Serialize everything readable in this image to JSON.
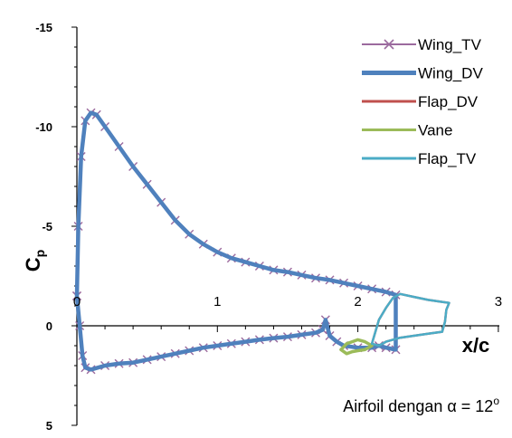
{
  "chart_data": {
    "type": "line",
    "title": "",
    "xlabel": "x/c",
    "ylabel": "C",
    "ylabel_sub": "p",
    "xlim": [
      0,
      3
    ],
    "ylim": [
      5,
      -15
    ],
    "y_inverted": true,
    "xticks": [
      {
        "value": 0,
        "label": "0"
      },
      {
        "value": 1,
        "label": "1"
      },
      {
        "value": 2,
        "label": "2"
      },
      {
        "value": 3,
        "label": "3"
      }
    ],
    "yticks": [
      {
        "value": -15,
        "label": "-15"
      },
      {
        "value": -10,
        "label": "-10"
      },
      {
        "value": -5,
        "label": "-5"
      },
      {
        "value": 0,
        "label": "0"
      },
      {
        "value": 5,
        "label": "5"
      }
    ],
    "grid": false,
    "legend": "top-right",
    "annotation": {
      "text_prefix": "Airfoil dengan ",
      "alpha": "α",
      "text_mid": " = 12",
      "degree": "o"
    },
    "series": [
      {
        "name": "Wing_TV",
        "color": "#9b6a9e",
        "marker": "x",
        "upper": [
          [
            0.0,
            -1.5
          ],
          [
            0.01,
            -5.0
          ],
          [
            0.03,
            -8.5
          ],
          [
            0.06,
            -10.3
          ],
          [
            0.1,
            -10.7
          ],
          [
            0.14,
            -10.6
          ],
          [
            0.2,
            -10.0
          ],
          [
            0.3,
            -9.0
          ],
          [
            0.4,
            -8.0
          ],
          [
            0.5,
            -7.1
          ],
          [
            0.6,
            -6.2
          ],
          [
            0.7,
            -5.3
          ],
          [
            0.8,
            -4.6
          ],
          [
            0.9,
            -4.1
          ],
          [
            1.0,
            -3.7
          ],
          [
            1.1,
            -3.4
          ],
          [
            1.2,
            -3.2
          ],
          [
            1.3,
            -3.0
          ],
          [
            1.4,
            -2.8
          ],
          [
            1.5,
            -2.7
          ],
          [
            1.6,
            -2.55
          ],
          [
            1.7,
            -2.4
          ],
          [
            1.8,
            -2.3
          ],
          [
            1.9,
            -2.15
          ],
          [
            2.0,
            -2.0
          ],
          [
            2.1,
            -1.85
          ],
          [
            2.2,
            -1.7
          ],
          [
            2.27,
            -1.55
          ]
        ],
        "lower": [
          [
            0.0,
            -1.5
          ],
          [
            0.02,
            0.0
          ],
          [
            0.04,
            1.5
          ],
          [
            0.06,
            2.1
          ],
          [
            0.1,
            2.2
          ],
          [
            0.2,
            2.0
          ],
          [
            0.3,
            1.9
          ],
          [
            0.4,
            1.85
          ],
          [
            0.5,
            1.7
          ],
          [
            0.6,
            1.55
          ],
          [
            0.7,
            1.4
          ],
          [
            0.8,
            1.25
          ],
          [
            0.9,
            1.1
          ],
          [
            1.0,
            1.0
          ],
          [
            1.1,
            0.9
          ],
          [
            1.2,
            0.8
          ],
          [
            1.3,
            0.7
          ],
          [
            1.4,
            0.62
          ],
          [
            1.5,
            0.55
          ],
          [
            1.6,
            0.45
          ],
          [
            1.7,
            0.35
          ],
          [
            1.75,
            0.2
          ],
          [
            1.77,
            -0.3
          ],
          [
            1.8,
            0.5
          ],
          [
            1.85,
            0.8
          ],
          [
            1.9,
            1.0
          ],
          [
            2.0,
            1.1
          ],
          [
            2.1,
            1.1
          ],
          [
            2.15,
            1.0
          ],
          [
            2.2,
            1.1
          ],
          [
            2.27,
            1.2
          ]
        ]
      },
      {
        "name": "Wing_DV",
        "color": "#4f81bd",
        "upper": [
          [
            0.0,
            -1.5
          ],
          [
            0.01,
            -5.0
          ],
          [
            0.03,
            -8.5
          ],
          [
            0.06,
            -10.3
          ],
          [
            0.1,
            -10.7
          ],
          [
            0.14,
            -10.6
          ],
          [
            0.2,
            -10.0
          ],
          [
            0.3,
            -9.0
          ],
          [
            0.4,
            -8.0
          ],
          [
            0.5,
            -7.1
          ],
          [
            0.6,
            -6.2
          ],
          [
            0.7,
            -5.3
          ],
          [
            0.8,
            -4.6
          ],
          [
            0.9,
            -4.1
          ],
          [
            1.0,
            -3.7
          ],
          [
            1.1,
            -3.4
          ],
          [
            1.2,
            -3.2
          ],
          [
            1.3,
            -3.0
          ],
          [
            1.4,
            -2.8
          ],
          [
            1.5,
            -2.7
          ],
          [
            1.6,
            -2.55
          ],
          [
            1.7,
            -2.4
          ],
          [
            1.8,
            -2.3
          ],
          [
            1.9,
            -2.15
          ],
          [
            2.0,
            -2.0
          ],
          [
            2.1,
            -1.85
          ],
          [
            2.2,
            -1.7
          ],
          [
            2.27,
            -1.55
          ]
        ],
        "lower": [
          [
            0.0,
            -1.5
          ],
          [
            0.02,
            0.0
          ],
          [
            0.04,
            1.5
          ],
          [
            0.06,
            2.1
          ],
          [
            0.1,
            2.2
          ],
          [
            0.2,
            2.0
          ],
          [
            0.3,
            1.9
          ],
          [
            0.4,
            1.85
          ],
          [
            0.5,
            1.7
          ],
          [
            0.6,
            1.55
          ],
          [
            0.7,
            1.4
          ],
          [
            0.8,
            1.25
          ],
          [
            0.9,
            1.1
          ],
          [
            1.0,
            1.0
          ],
          [
            1.1,
            0.9
          ],
          [
            1.2,
            0.8
          ],
          [
            1.3,
            0.7
          ],
          [
            1.4,
            0.62
          ],
          [
            1.5,
            0.55
          ],
          [
            1.6,
            0.45
          ],
          [
            1.7,
            0.35
          ],
          [
            1.75,
            0.2
          ],
          [
            1.77,
            -0.3
          ],
          [
            1.8,
            0.5
          ],
          [
            1.85,
            0.8
          ],
          [
            1.9,
            1.0
          ],
          [
            2.0,
            1.1
          ],
          [
            2.1,
            1.1
          ],
          [
            2.15,
            1.0
          ],
          [
            2.2,
            1.1
          ],
          [
            2.27,
            1.2
          ]
        ]
      },
      {
        "name": "Flap_DV",
        "color": "#c0504d",
        "upper": [
          [
            2.1,
            0.9
          ],
          [
            2.15,
            -0.3
          ],
          [
            2.2,
            -0.9
          ],
          [
            2.25,
            -1.4
          ],
          [
            2.3,
            -1.6
          ],
          [
            2.4,
            -1.45
          ],
          [
            2.5,
            -1.3
          ],
          [
            2.6,
            -1.2
          ],
          [
            2.65,
            -1.15
          ]
        ],
        "lower": [
          [
            2.1,
            0.9
          ],
          [
            2.15,
            1.0
          ],
          [
            2.2,
            0.8
          ],
          [
            2.3,
            0.6
          ],
          [
            2.4,
            0.5
          ],
          [
            2.5,
            0.4
          ],
          [
            2.6,
            0.3
          ],
          [
            2.62,
            -0.2
          ],
          [
            2.63,
            -0.8
          ],
          [
            2.65,
            -1.15
          ]
        ]
      },
      {
        "name": "Vane",
        "color": "#9bbb59",
        "upper": [
          [
            1.88,
            1.2
          ],
          [
            1.92,
            0.9
          ],
          [
            1.96,
            0.8
          ],
          [
            2.0,
            0.7
          ],
          [
            2.05,
            0.8
          ],
          [
            2.1,
            1.0
          ]
        ],
        "lower": [
          [
            1.88,
            1.2
          ],
          [
            1.92,
            1.4
          ],
          [
            1.96,
            1.3
          ],
          [
            2.0,
            1.25
          ],
          [
            2.05,
            1.2
          ],
          [
            2.1,
            1.0
          ]
        ]
      },
      {
        "name": "Flap_TV",
        "color": "#4bacc6",
        "upper": [
          [
            2.1,
            0.9
          ],
          [
            2.15,
            -0.3
          ],
          [
            2.2,
            -0.9
          ],
          [
            2.25,
            -1.4
          ],
          [
            2.3,
            -1.6
          ],
          [
            2.4,
            -1.45
          ],
          [
            2.5,
            -1.3
          ],
          [
            2.6,
            -1.2
          ],
          [
            2.65,
            -1.15
          ]
        ],
        "lower": [
          [
            2.1,
            0.9
          ],
          [
            2.15,
            1.0
          ],
          [
            2.2,
            0.8
          ],
          [
            2.3,
            0.6
          ],
          [
            2.4,
            0.5
          ],
          [
            2.5,
            0.4
          ],
          [
            2.6,
            0.3
          ],
          [
            2.62,
            -0.2
          ],
          [
            2.63,
            -0.8
          ],
          [
            2.65,
            -1.15
          ]
        ]
      }
    ]
  }
}
